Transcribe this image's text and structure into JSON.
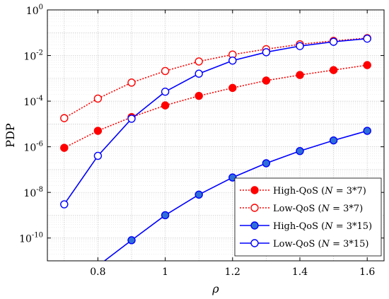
{
  "chart_data": {
    "type": "line",
    "xlabel": "ρ",
    "ylabel": "PDP",
    "xlim": [
      0.65,
      1.65
    ],
    "ylim": [
      1e-11,
      1
    ],
    "y_scale": "log",
    "grid": true,
    "legend_position": "bottom-right",
    "x_ticks": [
      0.8,
      1,
      1.2,
      1.4,
      1.6
    ],
    "x_tick_labels": [
      "0.8",
      "1",
      "1.2",
      "1.4",
      "1.6"
    ],
    "y_ticks": [
      1e-10,
      1e-08,
      1e-06,
      0.0001,
      0.01,
      1
    ],
    "y_tick_labels": [
      {
        "base": "10",
        "exp": "-10"
      },
      {
        "base": "10",
        "exp": "-8"
      },
      {
        "base": "10",
        "exp": "-6"
      },
      {
        "base": "10",
        "exp": "-4"
      },
      {
        "base": "10",
        "exp": "-2"
      },
      {
        "base": "10",
        "exp": "0"
      }
    ],
    "series": [
      {
        "name": "High-QoS (N = 3*7)",
        "name_parts": [
          "High-QoS (",
          "N",
          " = 3*7)"
        ],
        "color": "#ff0000",
        "line_style": "dotted",
        "marker": "filled-circle",
        "x": [
          0.7,
          0.8,
          0.9,
          1.0,
          1.1,
          1.2,
          1.3,
          1.4,
          1.5,
          1.6
        ],
        "y": [
          9e-07,
          5e-06,
          2e-05,
          6.5e-05,
          0.00017,
          0.00038,
          0.0008,
          0.0014,
          0.0023,
          0.0038
        ]
      },
      {
        "name": "Low-QoS (N = 3*7)",
        "name_parts": [
          "Low-QoS (",
          "N",
          " = 3*7)"
        ],
        "color": "#ff0000",
        "line_style": "dotted",
        "marker": "hollow-circle",
        "x": [
          0.7,
          0.8,
          0.9,
          1.0,
          1.1,
          1.2,
          1.3,
          1.4,
          1.5,
          1.6
        ],
        "y": [
          1.8e-05,
          0.00013,
          0.00065,
          0.0021,
          0.0055,
          0.011,
          0.019,
          0.031,
          0.044,
          0.058
        ]
      },
      {
        "name": "High-QoS (N = 3*15)",
        "name_parts": [
          "High-QoS (",
          "N",
          " = 3*15)"
        ],
        "color": "#0000ff",
        "fill": "#2f6fd6",
        "line_style": "solid",
        "marker": "filled-circle",
        "x": [
          0.8,
          0.9,
          1.0,
          1.1,
          1.2,
          1.3,
          1.4,
          1.5,
          1.6
        ],
        "y": [
          6e-12,
          8e-11,
          1e-09,
          8e-09,
          4.5e-08,
          1.9e-07,
          6.5e-07,
          1.9e-06,
          5e-06
        ]
      },
      {
        "name": "Low-QoS (N = 3*15)",
        "name_parts": [
          "Low-QoS (",
          "N",
          " = 3*15)"
        ],
        "color": "#0000ff",
        "line_style": "solid",
        "marker": "hollow-circle",
        "x": [
          0.7,
          0.8,
          0.9,
          1.0,
          1.1,
          1.2,
          1.3,
          1.4,
          1.5,
          1.6
        ],
        "y": [
          3e-09,
          4e-07,
          1.7e-05,
          0.00026,
          0.0016,
          0.006,
          0.014,
          0.026,
          0.04,
          0.055
        ]
      }
    ]
  }
}
